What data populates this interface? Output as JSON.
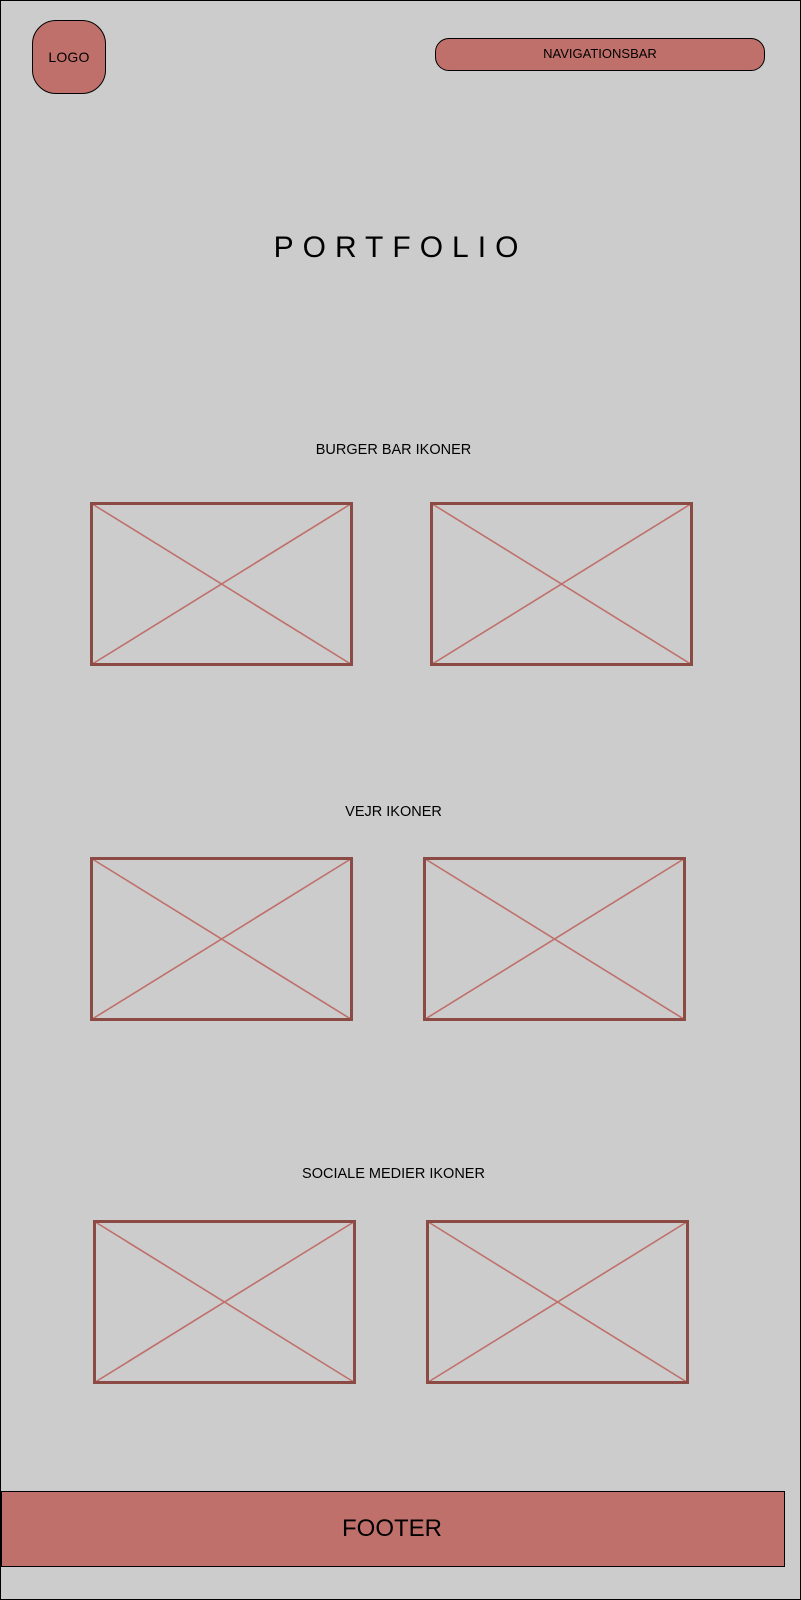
{
  "header": {
    "logo_label": "LOGO",
    "nav_label": "NAVIGATIONSBAR"
  },
  "page": {
    "title": "PORTFOLIO"
  },
  "sections": [
    {
      "heading": "BURGER BAR IKONER"
    },
    {
      "heading": "VEJR IKONER"
    },
    {
      "heading": "SOCIALE MEDIER IKONER"
    }
  ],
  "footer": {
    "label": "FOOTER"
  },
  "colors": {
    "background": "#cccccc",
    "accent": "#c0706b",
    "placeholder_frame": "#8c4a44",
    "placeholder_cross": "#c0706b"
  }
}
